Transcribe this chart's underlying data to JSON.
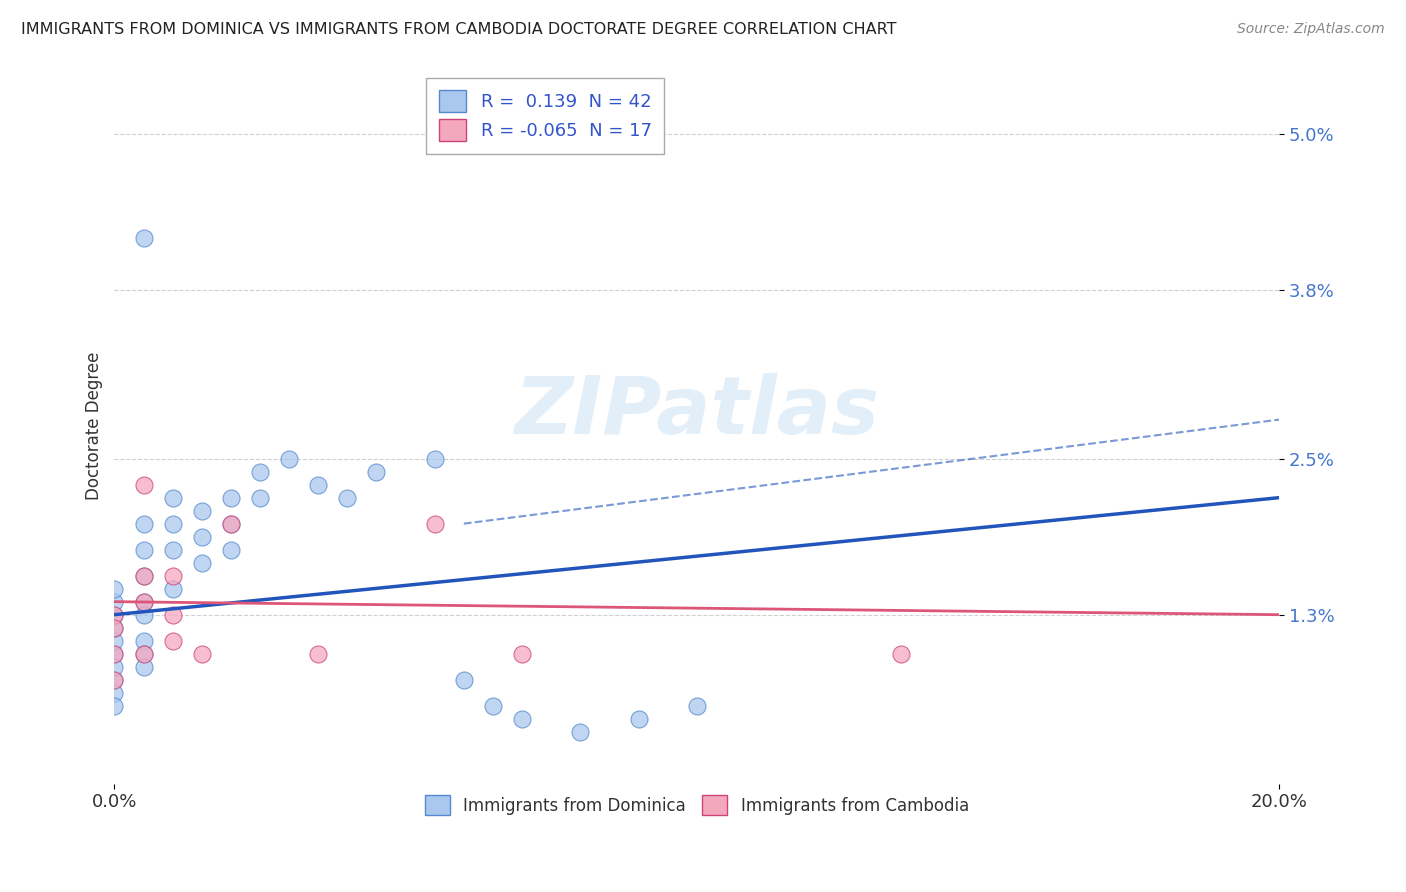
{
  "title": "IMMIGRANTS FROM DOMINICA VS IMMIGRANTS FROM CAMBODIA DOCTORATE DEGREE CORRELATION CHART",
  "source": "Source: ZipAtlas.com",
  "ylabel": "Doctorate Degree",
  "xlim": [
    0.0,
    0.2
  ],
  "ylim": [
    0.0,
    0.055
  ],
  "yticks": [
    0.013,
    0.025,
    0.038,
    0.05
  ],
  "ytick_labels": [
    "1.3%",
    "2.5%",
    "3.8%",
    "5.0%"
  ],
  "xticks": [
    0.0,
    0.2
  ],
  "xtick_labels": [
    "0.0%",
    "20.0%"
  ],
  "grid_color": "#d0d0d0",
  "background_color": "#ffffff",
  "dominica_color": "#aac8ee",
  "cambodia_color": "#f4a8be",
  "dominica_edge_color": "#5588cc",
  "cambodia_edge_color": "#cc4477",
  "dominica_line_color": "#2255bb",
  "cambodia_line_color": "#dd5577",
  "R_dominica": "0.139",
  "N_dominica": 42,
  "R_cambodia": "-0.065",
  "N_cambodia": 17,
  "legend_label_dominica": "Immigrants from Dominica",
  "legend_label_cambodia": "Immigrants from Cambodia",
  "dominica_scatter_x": [
    0.005,
    0.0,
    0.0,
    0.0,
    0.0,
    0.0,
    0.0,
    0.0,
    0.0,
    0.0,
    0.0,
    0.005,
    0.005,
    0.005,
    0.005,
    0.005,
    0.005,
    0.005,
    0.005,
    0.01,
    0.01,
    0.01,
    0.01,
    0.015,
    0.015,
    0.015,
    0.02,
    0.02,
    0.02,
    0.025,
    0.025,
    0.03,
    0.035,
    0.04,
    0.045,
    0.055,
    0.06,
    0.065,
    0.07,
    0.08,
    0.09,
    0.1
  ],
  "dominica_scatter_y": [
    0.042,
    0.01,
    0.011,
    0.012,
    0.013,
    0.014,
    0.015,
    0.008,
    0.009,
    0.007,
    0.006,
    0.02,
    0.018,
    0.016,
    0.014,
    0.013,
    0.011,
    0.01,
    0.009,
    0.022,
    0.02,
    0.018,
    0.015,
    0.021,
    0.019,
    0.017,
    0.022,
    0.02,
    0.018,
    0.024,
    0.022,
    0.025,
    0.023,
    0.022,
    0.024,
    0.025,
    0.008,
    0.006,
    0.005,
    0.004,
    0.005,
    0.006
  ],
  "cambodia_scatter_x": [
    0.0,
    0.0,
    0.0,
    0.0,
    0.005,
    0.005,
    0.005,
    0.005,
    0.01,
    0.01,
    0.01,
    0.015,
    0.02,
    0.035,
    0.055,
    0.07,
    0.135
  ],
  "cambodia_scatter_y": [
    0.013,
    0.012,
    0.01,
    0.008,
    0.023,
    0.016,
    0.014,
    0.01,
    0.016,
    0.013,
    0.011,
    0.01,
    0.02,
    0.01,
    0.02,
    0.01,
    0.01
  ],
  "watermark_text": "ZIPatlas",
  "dominica_trendline_x": [
    0.0,
    0.2
  ],
  "dominica_trendline_y": [
    0.013,
    0.022
  ],
  "cambodia_trendline_x": [
    0.0,
    0.2
  ],
  "cambodia_trendline_y": [
    0.014,
    0.013
  ],
  "dashed_trendline_x": [
    0.06,
    0.2
  ],
  "dashed_trendline_y": [
    0.02,
    0.028
  ]
}
